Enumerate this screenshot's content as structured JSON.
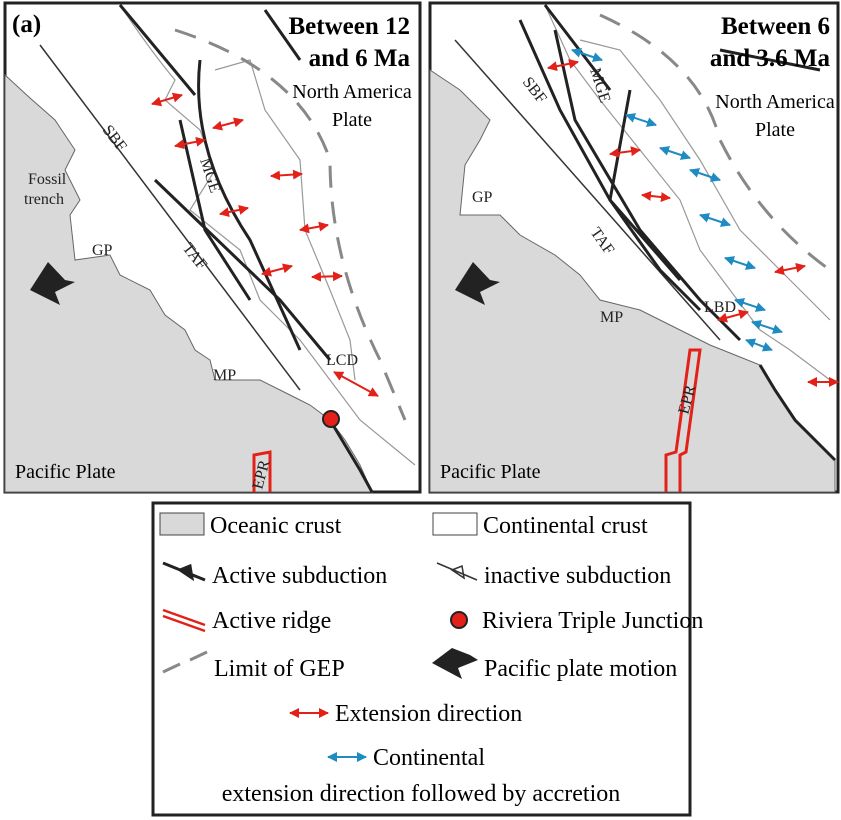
{
  "panels": [
    {
      "label": "(a)",
      "title": [
        "Between 12",
        "and 6 Ma"
      ],
      "plate": [
        "North America",
        "Plate"
      ],
      "map_labels": [
        "SBF",
        "Fossil",
        "trench",
        "GP",
        "TAF",
        "MGE",
        "MP",
        "LCD",
        "EPR"
      ],
      "ocean_label": "Pacific Plate"
    },
    {
      "title": [
        "Between 6",
        "and 3.6 Ma"
      ],
      "plate": [
        "North America",
        "Plate"
      ],
      "map_labels": [
        "SBF",
        "MGE",
        "GP",
        "TAF",
        "LBD",
        "MP",
        "EPR"
      ],
      "ocean_label": "Pacific Plate"
    }
  ],
  "legend": {
    "items": [
      "Oceanic crust",
      "Continental crust",
      "Active subduction",
      "inactive subduction",
      "Active ridge",
      "Riviera Triple Junction",
      "Limit of GEP",
      "Pacific plate motion",
      "Extension direction",
      "Continental",
      "extension direction followed by accretion"
    ]
  }
}
